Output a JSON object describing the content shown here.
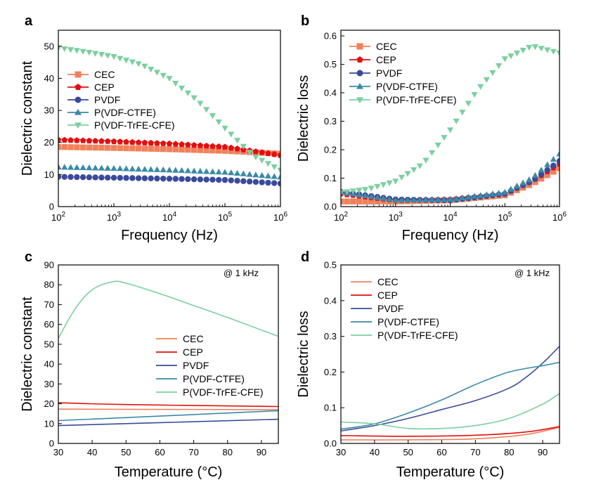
{
  "colors": {
    "CEC": "#f0805a",
    "CEP": "#e01010",
    "PVDF": "#3a4a9a",
    "P(VDF-CTFE)": "#3a8aa8",
    "P(VDF-TrFE-CFE)": "#7ccfa0"
  },
  "chart_data": [
    {
      "type": "scatter",
      "panel_label": "a",
      "xlabel": "Frequency (Hz)",
      "ylabel": "Dielectric constant",
      "xscale": "log",
      "xlim": [
        100,
        1000000
      ],
      "ylim": [
        0,
        55
      ],
      "xticks": [
        100,
        1000,
        10000,
        100000,
        1000000
      ],
      "xtick_labels": [
        {
          "base": "10",
          "exp": "2"
        },
        {
          "base": "10",
          "exp": "3"
        },
        {
          "base": "10",
          "exp": "4"
        },
        {
          "base": "10",
          "exp": "5"
        },
        {
          "base": "10",
          "exp": "6"
        }
      ],
      "yticks": [
        0,
        10,
        20,
        30,
        40,
        50
      ],
      "legend_position": "left",
      "series": [
        {
          "name": "CEC",
          "marker": "square",
          "x": [
            100,
            1000,
            10000,
            100000,
            1000000
          ],
          "y": [
            18.6,
            18.3,
            17.9,
            17.4,
            16.5
          ]
        },
        {
          "name": "CEP",
          "marker": "pentagon",
          "x": [
            100,
            1000,
            10000,
            100000,
            1000000
          ],
          "y": [
            20.8,
            20.3,
            19.6,
            18.6,
            16.0
          ]
        },
        {
          "name": "PVDF",
          "marker": "circle",
          "x": [
            100,
            1000,
            10000,
            100000,
            1000000
          ],
          "y": [
            9.3,
            9.0,
            8.7,
            8.3,
            7.2
          ]
        },
        {
          "name": "P(VDF-CTFE)",
          "marker": "triangle-up",
          "x": [
            100,
            1000,
            10000,
            100000,
            1000000
          ],
          "y": [
            12.3,
            11.9,
            11.4,
            10.7,
            9.2
          ]
        },
        {
          "name": "P(VDF-TrFE-CFE)",
          "marker": "triangle-down",
          "x": [
            100,
            316,
            1000,
            3162,
            10000,
            31623,
            100000,
            316228,
            1000000
          ],
          "y": [
            49.5,
            48.3,
            46.8,
            44.3,
            40.0,
            33.2,
            24.5,
            16.0,
            11.4
          ]
        }
      ]
    },
    {
      "type": "scatter",
      "panel_label": "b",
      "xlabel": "Frequency (Hz)",
      "ylabel": "Dielectric loss",
      "xscale": "log",
      "xlim": [
        100,
        1000000
      ],
      "ylim": [
        0,
        0.62
      ],
      "xticks": [
        100,
        1000,
        10000,
        100000,
        1000000
      ],
      "xtick_labels": [
        {
          "base": "10",
          "exp": "2"
        },
        {
          "base": "10",
          "exp": "3"
        },
        {
          "base": "10",
          "exp": "4"
        },
        {
          "base": "10",
          "exp": "5"
        },
        {
          "base": "10",
          "exp": "6"
        }
      ],
      "yticks": [
        0.0,
        0.1,
        0.2,
        0.3,
        0.4,
        0.5,
        0.6
      ],
      "ytick_labels": [
        "0.0",
        "0.1",
        "0.2",
        "0.3",
        "0.4",
        "0.5",
        "0.6"
      ],
      "legend_position": "top-left",
      "series": [
        {
          "name": "CEC",
          "marker": "square",
          "x": [
            100,
            1000,
            10000,
            100000,
            316228,
            1000000
          ],
          "y": [
            0.018,
            0.018,
            0.022,
            0.04,
            0.08,
            0.135
          ]
        },
        {
          "name": "CEP",
          "marker": "pentagon",
          "x": [
            100,
            1000,
            10000,
            100000,
            316228,
            1000000
          ],
          "y": [
            0.045,
            0.022,
            0.025,
            0.045,
            0.09,
            0.15
          ]
        },
        {
          "name": "PVDF",
          "marker": "circle",
          "x": [
            100,
            1000,
            10000,
            100000,
            316228,
            1000000
          ],
          "y": [
            0.052,
            0.025,
            0.022,
            0.045,
            0.09,
            0.16
          ]
        },
        {
          "name": "P(VDF-CTFE)",
          "marker": "triangle-up",
          "x": [
            100,
            1000,
            10000,
            100000,
            316228,
            1000000
          ],
          "y": [
            0.05,
            0.022,
            0.025,
            0.05,
            0.1,
            0.185
          ]
        },
        {
          "name": "P(VDF-TrFE-CFE)",
          "marker": "triangle-down",
          "x": [
            100,
            316,
            1000,
            3162,
            10000,
            31623,
            100000,
            316228,
            1000000
          ],
          "y": [
            0.05,
            0.062,
            0.09,
            0.15,
            0.27,
            0.41,
            0.52,
            0.565,
            0.54
          ]
        }
      ]
    },
    {
      "type": "line",
      "panel_label": "c",
      "xlabel": "Temperature (°C)",
      "ylabel": "Dielectric constant",
      "annotation": "@ 1 kHz",
      "xlim": [
        30,
        95
      ],
      "ylim": [
        0,
        90
      ],
      "xticks": [
        30,
        40,
        50,
        60,
        70,
        80,
        90
      ],
      "yticks": [
        0,
        10,
        20,
        30,
        40,
        50,
        60,
        70,
        80,
        90
      ],
      "legend_position": "center-right",
      "series": [
        {
          "name": "CEC",
          "x": [
            30,
            95
          ],
          "y": [
            17.3,
            17.0
          ]
        },
        {
          "name": "CEP",
          "x": [
            30,
            50,
            95
          ],
          "y": [
            20.5,
            19.6,
            18.6
          ]
        },
        {
          "name": "PVDF",
          "x": [
            30,
            60,
            95
          ],
          "y": [
            9.0,
            10.5,
            12.2
          ]
        },
        {
          "name": "P(VDF-CTFE)",
          "x": [
            30,
            60,
            95
          ],
          "y": [
            11.5,
            13.8,
            16.5
          ]
        },
        {
          "name": "P(VDF-TrFE-CFE)",
          "x": [
            30,
            35,
            40,
            46,
            50,
            60,
            70,
            80,
            90,
            95
          ],
          "y": [
            53.0,
            68.0,
            77.5,
            81.5,
            80.8,
            75.5,
            69.5,
            63.5,
            57.2,
            54.0
          ]
        }
      ]
    },
    {
      "type": "line",
      "panel_label": "d",
      "xlabel": "Temperature (°C)",
      "ylabel": "Dielectric loss",
      "annotation": "@ 1 kHz",
      "xlim": [
        30,
        95
      ],
      "ylim": [
        0,
        0.5
      ],
      "xticks": [
        30,
        40,
        50,
        60,
        70,
        80,
        90
      ],
      "yticks": [
        0.0,
        0.1,
        0.2,
        0.3,
        0.4,
        0.5
      ],
      "ytick_labels": [
        "0.0",
        "0.1",
        "0.2",
        "0.3",
        "0.4",
        "0.5"
      ],
      "legend_position": "top-left",
      "series": [
        {
          "name": "CEC",
          "x": [
            30,
            50,
            70,
            85,
            95
          ],
          "y": [
            0.01,
            0.01,
            0.013,
            0.025,
            0.045
          ]
        },
        {
          "name": "CEP",
          "x": [
            30,
            50,
            70,
            85,
            95
          ],
          "y": [
            0.022,
            0.02,
            0.023,
            0.032,
            0.047
          ]
        },
        {
          "name": "PVDF",
          "x": [
            30,
            40,
            50,
            60,
            70,
            80,
            85,
            90,
            95
          ],
          "y": [
            0.035,
            0.05,
            0.07,
            0.095,
            0.12,
            0.155,
            0.185,
            0.225,
            0.272
          ]
        },
        {
          "name": "P(VDF-CTFE)",
          "x": [
            30,
            40,
            50,
            60,
            70,
            80,
            90,
            95
          ],
          "y": [
            0.04,
            0.055,
            0.085,
            0.122,
            0.165,
            0.2,
            0.218,
            0.227
          ]
        },
        {
          "name": "P(VDF-TrFE-CFE)",
          "x": [
            30,
            40,
            50,
            60,
            70,
            80,
            90,
            95
          ],
          "y": [
            0.06,
            0.055,
            0.042,
            0.042,
            0.05,
            0.07,
            0.11,
            0.14
          ]
        }
      ]
    }
  ]
}
